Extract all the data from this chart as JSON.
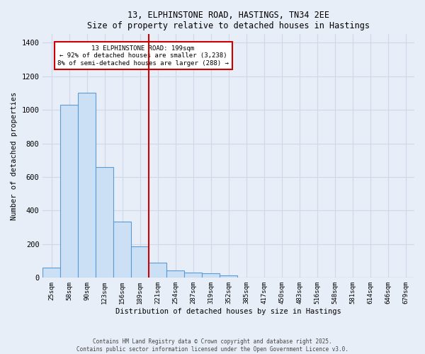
{
  "title": "13, ELPHINSTONE ROAD, HASTINGS, TN34 2EE",
  "subtitle": "Size of property relative to detached houses in Hastings",
  "xlabel": "Distribution of detached houses by size in Hastings",
  "ylabel": "Number of detached properties",
  "bar_labels": [
    "25sqm",
    "58sqm",
    "90sqm",
    "123sqm",
    "156sqm",
    "189sqm",
    "221sqm",
    "254sqm",
    "287sqm",
    "319sqm",
    "352sqm",
    "385sqm",
    "417sqm",
    "450sqm",
    "483sqm",
    "516sqm",
    "548sqm",
    "581sqm",
    "614sqm",
    "646sqm",
    "679sqm"
  ],
  "bar_values": [
    60,
    1030,
    1100,
    660,
    335,
    185,
    90,
    45,
    30,
    25,
    15,
    0,
    0,
    0,
    0,
    0,
    0,
    0,
    0,
    0,
    0
  ],
  "bar_color": "#cce0f5",
  "bar_edge_color": "#5b9bd5",
  "annotation_line1": "13 ELPHINSTONE ROAD: 199sqm",
  "annotation_line2": "← 92% of detached houses are smaller (3,238)",
  "annotation_line3": "8% of semi-detached houses are larger (288) →",
  "annotation_box_color": "#ffffff",
  "annotation_box_edge": "#cc0000",
  "ylim": [
    0,
    1450
  ],
  "yticks": [
    0,
    200,
    400,
    600,
    800,
    1000,
    1200,
    1400
  ],
  "grid_color": "#d0d8e8",
  "bg_color": "#e8eef8",
  "footer1": "Contains HM Land Registry data © Crown copyright and database right 2025.",
  "footer2": "Contains public sector information licensed under the Open Government Licence v3.0."
}
